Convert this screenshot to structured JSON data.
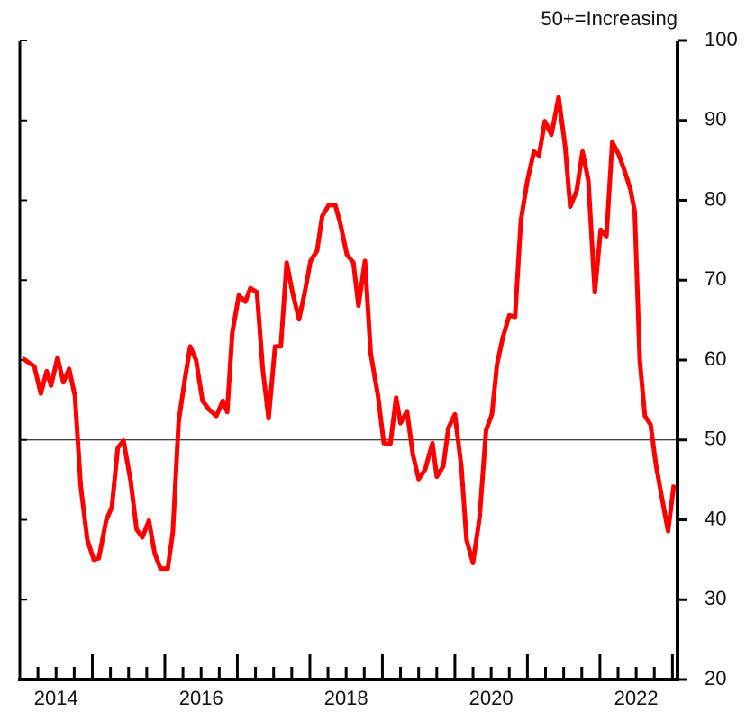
{
  "chart_data": {
    "type": "line",
    "annotation": "50+=Increasing",
    "reference_line": 50,
    "xlim": [
      2014,
      2023.07
    ],
    "xticks": [
      {
        "value": 2014.5,
        "label": "2014"
      },
      {
        "value": 2016.5,
        "label": "2016"
      },
      {
        "value": 2018.5,
        "label": "2018"
      },
      {
        "value": 2020.5,
        "label": "2020"
      },
      {
        "value": 2022.5,
        "label": "2022"
      }
    ],
    "ylim": [
      20,
      100
    ],
    "yticks": [
      20,
      30,
      40,
      50,
      60,
      70,
      80,
      90,
      100
    ],
    "series": [
      {
        "color": "#ff0000",
        "x": [
          2014.04,
          2014.2,
          2014.29,
          2014.37,
          2014.43,
          2014.52,
          2014.6,
          2014.68,
          2014.76,
          2014.84,
          2014.93,
          2015.02,
          2015.09,
          2015.19,
          2015.27,
          2015.35,
          2015.43,
          2015.53,
          2015.61,
          2015.69,
          2015.78,
          2015.86,
          2015.94,
          2016.04,
          2016.11,
          2016.19,
          2016.27,
          2016.35,
          2016.43,
          2016.52,
          2016.61,
          2016.71,
          2016.8,
          2016.86,
          2016.93,
          2017.02,
          2017.11,
          2017.18,
          2017.27,
          2017.35,
          2017.43,
          2017.52,
          2017.6,
          2017.68,
          2017.76,
          2017.85,
          2017.93,
          2018.01,
          2018.1,
          2018.17,
          2018.26,
          2018.35,
          2018.42,
          2018.51,
          2018.6,
          2018.67,
          2018.76,
          2018.84,
          2018.94,
          2019.02,
          2019.11,
          2019.19,
          2019.25,
          2019.34,
          2019.42,
          2019.5,
          2019.59,
          2019.69,
          2019.75,
          2019.84,
          2019.91,
          2020.0,
          2020.09,
          2020.16,
          2020.25,
          2020.34,
          2020.43,
          2020.51,
          2020.58,
          2020.66,
          2020.75,
          2020.83,
          2020.91,
          2021.0,
          2021.09,
          2021.16,
          2021.24,
          2021.33,
          2021.43,
          2021.52,
          2021.59,
          2021.68,
          2021.76,
          2021.84,
          2021.93,
          2022.01,
          2022.09,
          2022.17,
          2022.26,
          2022.34,
          2022.42,
          2022.48,
          2022.55,
          2022.62,
          2022.7,
          2022.77,
          2022.86,
          2022.94,
          2023.02
        ],
        "values": [
          60.2,
          59.2,
          55.8,
          58.6,
          56.8,
          60.3,
          57.2,
          58.9,
          55.5,
          44.2,
          37.5,
          35.0,
          35.2,
          39.9,
          41.6,
          49.0,
          49.9,
          44.8,
          38.8,
          37.8,
          39.9,
          35.8,
          33.9,
          33.9,
          38.4,
          52.3,
          57.2,
          61.7,
          60.0,
          54.9,
          53.8,
          53.0,
          54.9,
          53.5,
          63.4,
          68.1,
          67.3,
          69.0,
          68.5,
          58.9,
          52.7,
          61.7,
          61.7,
          72.2,
          68.5,
          65.1,
          68.5,
          72.4,
          73.7,
          78.0,
          79.4,
          79.4,
          77.1,
          73.2,
          72.2,
          66.8,
          72.4,
          60.8,
          55.5,
          49.6,
          49.5,
          55.3,
          52.1,
          53.6,
          48.2,
          45.1,
          46.3,
          49.6,
          45.4,
          46.7,
          51.5,
          53.2,
          46.5,
          37.5,
          34.6,
          40.3,
          51.2,
          53.2,
          59.4,
          62.8,
          65.6,
          65.4,
          77.5,
          82.5,
          86.1,
          85.6,
          89.9,
          88.2,
          92.9,
          86.8,
          79.2,
          81.2,
          86.1,
          82.5,
          68.5,
          76.3,
          75.5,
          87.3,
          85.7,
          83.7,
          81.4,
          78.6,
          60.0,
          53.0,
          51.9,
          47.0,
          42.5,
          38.6,
          44.4
        ]
      }
    ]
  }
}
